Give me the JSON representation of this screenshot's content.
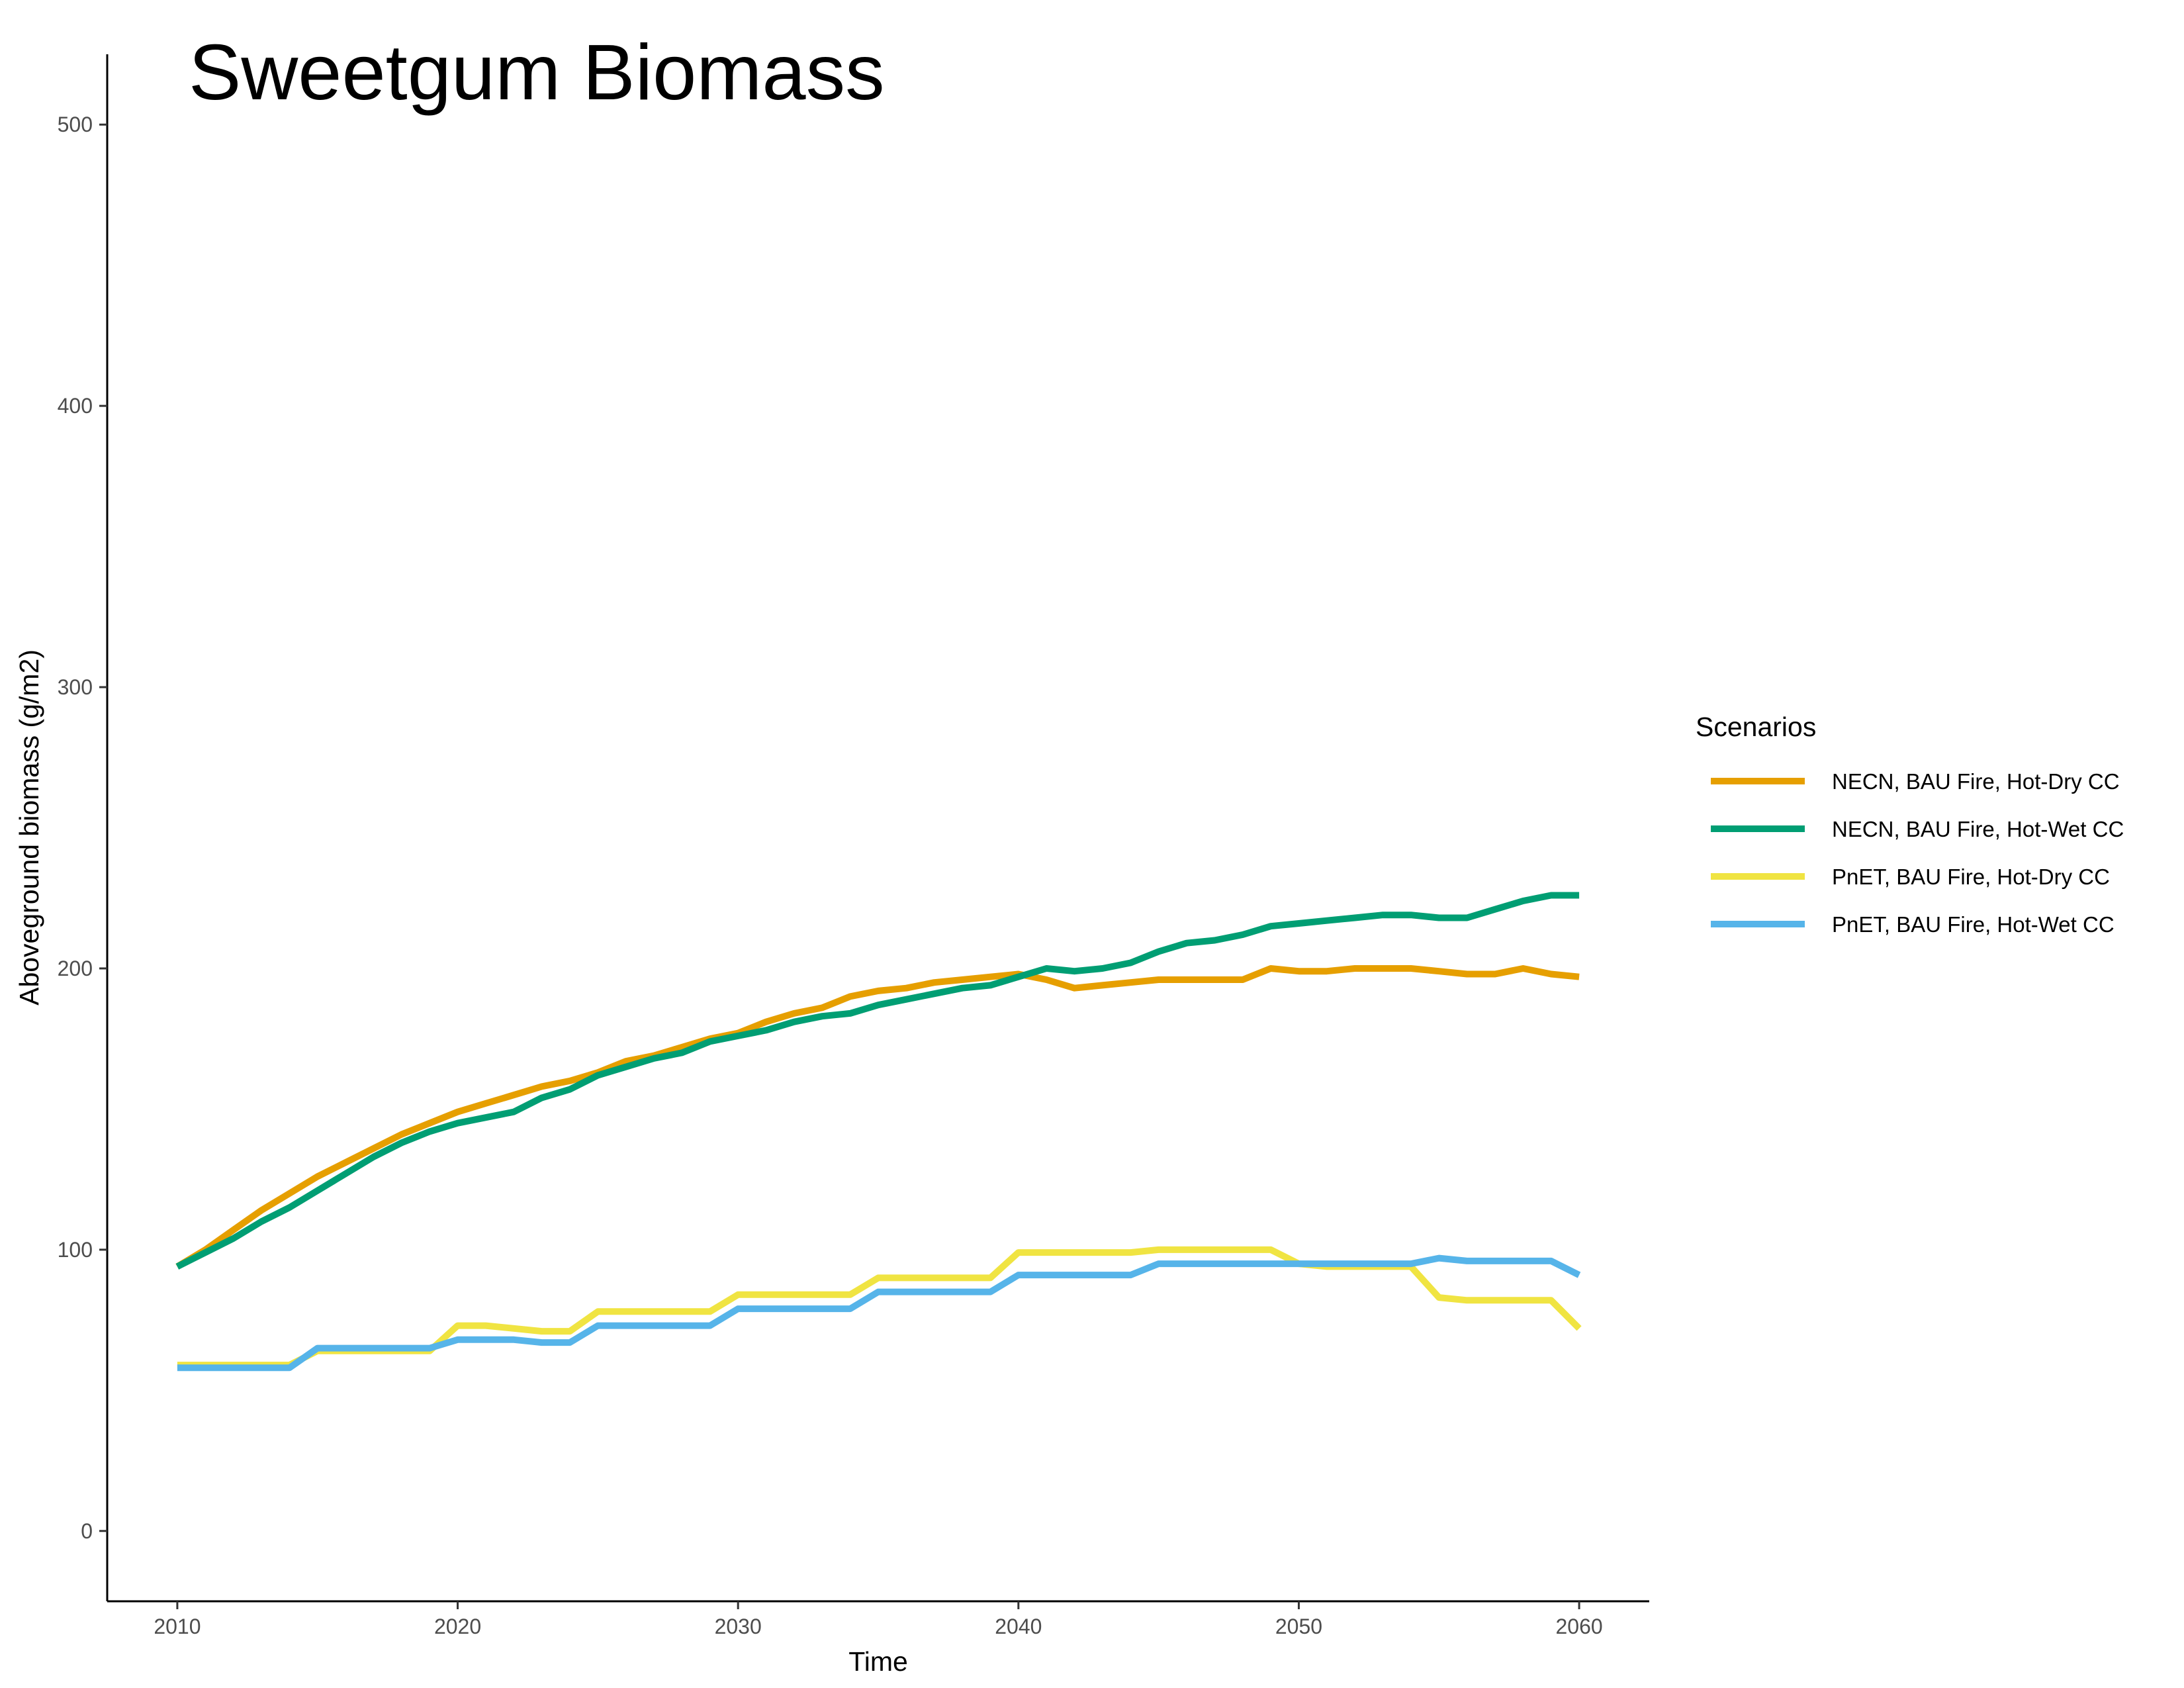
{
  "chart_data": {
    "type": "line",
    "title": "Sweetgum Biomass",
    "xlabel": "Time",
    "ylabel": "Aboveground biomass (g/m2)",
    "xlim": [
      2007.5,
      2062.5
    ],
    "ylim": [
      -25,
      525
    ],
    "x_ticks": [
      2010,
      2020,
      2030,
      2040,
      2050,
      2060
    ],
    "y_ticks": [
      0,
      100,
      200,
      300,
      400,
      500
    ],
    "grid": false,
    "legend": {
      "title": "Scenarios",
      "position": "right"
    },
    "x": [
      2010,
      2011,
      2012,
      2013,
      2014,
      2015,
      2016,
      2017,
      2018,
      2019,
      2020,
      2021,
      2022,
      2023,
      2024,
      2025,
      2026,
      2027,
      2028,
      2029,
      2030,
      2031,
      2032,
      2033,
      2034,
      2035,
      2036,
      2037,
      2038,
      2039,
      2040,
      2041,
      2042,
      2043,
      2044,
      2045,
      2046,
      2047,
      2048,
      2049,
      2050,
      2051,
      2052,
      2053,
      2054,
      2055,
      2056,
      2057,
      2058,
      2059,
      2060
    ],
    "series": [
      {
        "name": "NECN, BAU Fire, Hot-Dry CC",
        "color": "#E69F00",
        "values": [
          94,
          100,
          107,
          114,
          120,
          126,
          131,
          136,
          141,
          145,
          149,
          152,
          155,
          158,
          160,
          163,
          167,
          169,
          172,
          175,
          177,
          181,
          184,
          186,
          190,
          192,
          193,
          195,
          196,
          197,
          198,
          196,
          193,
          194,
          195,
          196,
          196,
          196,
          196,
          200,
          199,
          199,
          200,
          200,
          200,
          199,
          198,
          198,
          200,
          198,
          197
        ]
      },
      {
        "name": "NECN, BAU Fire, Hot-Wet CC",
        "color": "#009E73",
        "values": [
          94,
          99,
          104,
          110,
          115,
          121,
          127,
          133,
          138,
          142,
          145,
          147,
          149,
          154,
          157,
          162,
          165,
          168,
          170,
          174,
          176,
          178,
          181,
          183,
          184,
          187,
          189,
          191,
          193,
          194,
          197,
          200,
          199,
          200,
          202,
          206,
          209,
          210,
          212,
          215,
          216,
          217,
          218,
          219,
          219,
          218,
          218,
          221,
          224,
          226,
          226
        ]
      },
      {
        "name": "PnET, BAU Fire, Hot-Dry CC",
        "color": "#F0E442",
        "values": [
          59,
          59,
          59,
          59,
          59,
          64,
          64,
          64,
          64,
          64,
          73,
          73,
          72,
          71,
          71,
          78,
          78,
          78,
          78,
          78,
          84,
          84,
          84,
          84,
          84,
          90,
          90,
          90,
          90,
          90,
          99,
          99,
          99,
          99,
          99,
          100,
          100,
          100,
          100,
          100,
          95,
          94,
          94,
          94,
          94,
          83,
          82,
          82,
          82,
          82,
          72
        ]
      },
      {
        "name": "PnET, BAU Fire, Hot-Wet CC",
        "color": "#56B4E9",
        "values": [
          58,
          58,
          58,
          58,
          58,
          65,
          65,
          65,
          65,
          65,
          68,
          68,
          68,
          67,
          67,
          73,
          73,
          73,
          73,
          73,
          79,
          79,
          79,
          79,
          79,
          85,
          85,
          85,
          85,
          85,
          91,
          91,
          91,
          91,
          91,
          95,
          95,
          95,
          95,
          95,
          95,
          95,
          95,
          95,
          95,
          97,
          96,
          96,
          96,
          96,
          91
        ]
      }
    ]
  }
}
